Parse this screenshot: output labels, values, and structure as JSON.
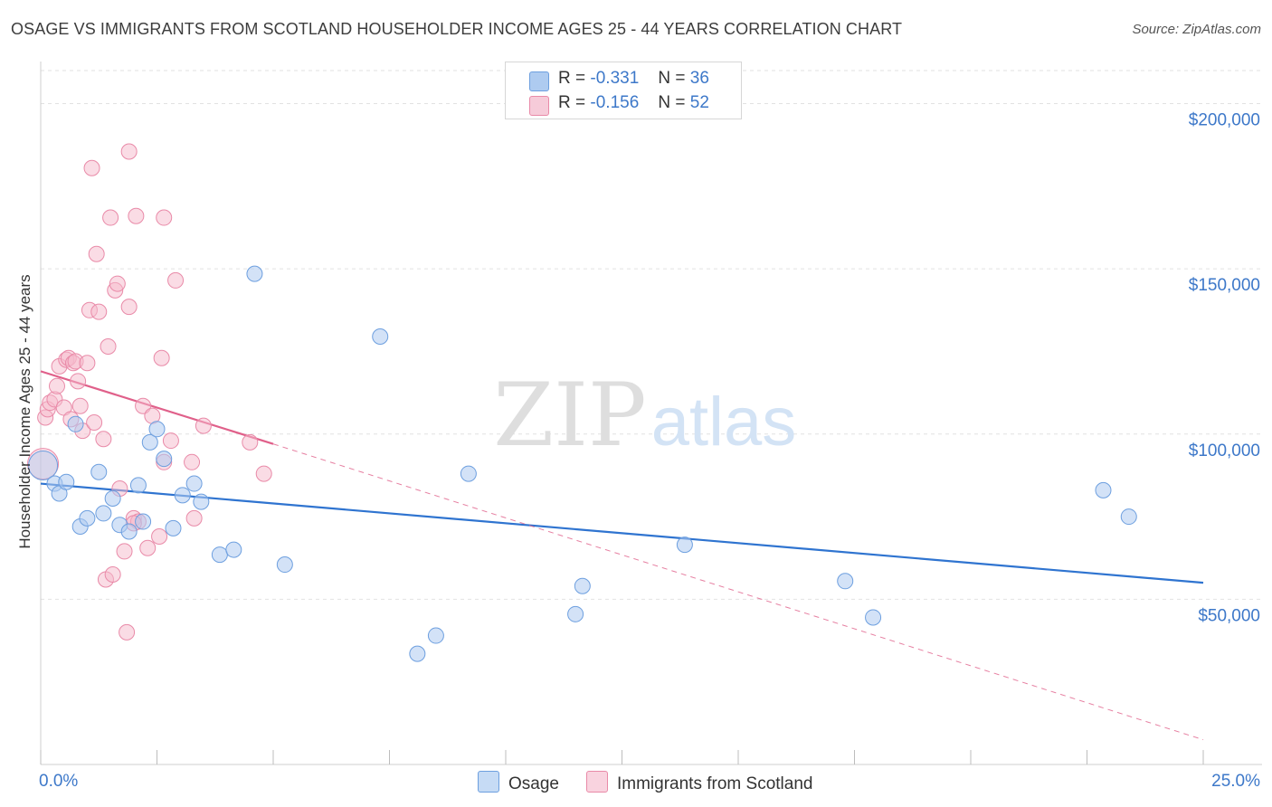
{
  "title": "OSAGE VS IMMIGRANTS FROM SCOTLAND HOUSEHOLDER INCOME AGES 25 - 44 YEARS CORRELATION CHART",
  "source": "Source: ZipAtlas.com",
  "watermark": {
    "zip": "ZIP",
    "atlas": "atlas"
  },
  "legend": {
    "r_label": "R =",
    "n_label": "N =",
    "series1": {
      "r": "-0.331",
      "n": "36"
    },
    "series2": {
      "r": "-0.156",
      "n": "52"
    }
  },
  "colors": {
    "osage_fill": "#aecbf0",
    "osage_stroke": "#6d9fdf",
    "osage_line": "#2f74d0",
    "scot_fill": "#f6b9cc",
    "scot_stroke": "#e98aa8",
    "scot_line": "#e0608a",
    "tick_label": "#3d78c9"
  },
  "chart_data": {
    "type": "scatter",
    "title": "OSAGE VS IMMIGRANTS FROM SCOTLAND HOUSEHOLDER INCOME AGES 25 - 44 YEARS CORRELATION CHART",
    "xlabel": "",
    "ylabel": "Householder Income Ages 25 - 44 years",
    "xlim": [
      0,
      25
    ],
    "ylim": [
      0,
      210000
    ],
    "x_tick_labels": [
      "0.0%",
      "25.0%"
    ],
    "y_ticks": [
      50000,
      100000,
      150000,
      200000
    ],
    "y_tick_labels": [
      "$50,000",
      "$100,000",
      "$150,000",
      "$200,000"
    ],
    "grid": true,
    "legend_position": "top-center",
    "series": [
      {
        "name": "Osage",
        "points": [
          [
            0.05,
            90500
          ],
          [
            0.3,
            85000
          ],
          [
            0.4,
            82000
          ],
          [
            0.55,
            85500
          ],
          [
            0.75,
            103000
          ],
          [
            0.85,
            72000
          ],
          [
            1.0,
            74500
          ],
          [
            1.25,
            88500
          ],
          [
            1.35,
            76000
          ],
          [
            1.55,
            80500
          ],
          [
            1.7,
            72500
          ],
          [
            1.9,
            70500
          ],
          [
            2.1,
            84500
          ],
          [
            2.2,
            73500
          ],
          [
            2.35,
            97500
          ],
          [
            2.5,
            101500
          ],
          [
            2.65,
            92500
          ],
          [
            2.85,
            71500
          ],
          [
            3.05,
            81500
          ],
          [
            3.3,
            85000
          ],
          [
            3.45,
            79500
          ],
          [
            3.85,
            63500
          ],
          [
            4.15,
            65000
          ],
          [
            4.6,
            148500
          ],
          [
            5.25,
            60500
          ],
          [
            7.3,
            129500
          ],
          [
            8.1,
            33500
          ],
          [
            8.5,
            39000
          ],
          [
            9.2,
            88000
          ],
          [
            11.5,
            45500
          ],
          [
            11.65,
            54000
          ],
          [
            13.85,
            66500
          ],
          [
            17.3,
            55500
          ],
          [
            17.9,
            44500
          ],
          [
            22.85,
            83000
          ],
          [
            23.4,
            75000
          ]
        ],
        "trend": {
          "x": [
            0,
            25
          ],
          "y": [
            85000,
            55000
          ]
        }
      },
      {
        "name": "Immigrants from Scotland",
        "points": [
          [
            0.05,
            91000
          ],
          [
            0.1,
            105000
          ],
          [
            0.15,
            107500
          ],
          [
            0.2,
            109500
          ],
          [
            0.3,
            110500
          ],
          [
            0.35,
            114500
          ],
          [
            0.4,
            120500
          ],
          [
            0.5,
            108000
          ],
          [
            0.55,
            122500
          ],
          [
            0.6,
            123000
          ],
          [
            0.65,
            104500
          ],
          [
            0.7,
            121500
          ],
          [
            0.75,
            122000
          ],
          [
            0.8,
            116000
          ],
          [
            0.85,
            108500
          ],
          [
            0.9,
            101000
          ],
          [
            1.0,
            121500
          ],
          [
            1.05,
            137500
          ],
          [
            1.1,
            180500
          ],
          [
            1.15,
            103500
          ],
          [
            1.2,
            154500
          ],
          [
            1.25,
            137000
          ],
          [
            1.35,
            98500
          ],
          [
            1.4,
            56000
          ],
          [
            1.45,
            126500
          ],
          [
            1.5,
            165500
          ],
          [
            1.55,
            57500
          ],
          [
            1.6,
            143500
          ],
          [
            1.65,
            145500
          ],
          [
            1.7,
            83500
          ],
          [
            1.8,
            64500
          ],
          [
            1.85,
            40000
          ],
          [
            1.9,
            138500
          ],
          [
            1.9,
            185500
          ],
          [
            2.0,
            74500
          ],
          [
            2.05,
            166000
          ],
          [
            2.1,
            73500
          ],
          [
            2.2,
            108500
          ],
          [
            2.3,
            65500
          ],
          [
            2.4,
            105500
          ],
          [
            2.55,
            69000
          ],
          [
            2.6,
            123000
          ],
          [
            2.65,
            91500
          ],
          [
            2.65,
            165500
          ],
          [
            2.8,
            98000
          ],
          [
            2.9,
            146500
          ],
          [
            3.25,
            91500
          ],
          [
            3.3,
            74500
          ],
          [
            3.5,
            102500
          ],
          [
            4.5,
            97500
          ],
          [
            4.8,
            88000
          ],
          [
            2.0,
            73000
          ]
        ],
        "trend": {
          "x": [
            0,
            5
          ],
          "y": [
            119000,
            97000
          ]
        },
        "trend_dashed": {
          "x": [
            5,
            25
          ],
          "y": [
            97000,
            7500
          ]
        }
      }
    ]
  },
  "bottom_legend": [
    "Osage",
    "Immigrants from Scotland"
  ]
}
